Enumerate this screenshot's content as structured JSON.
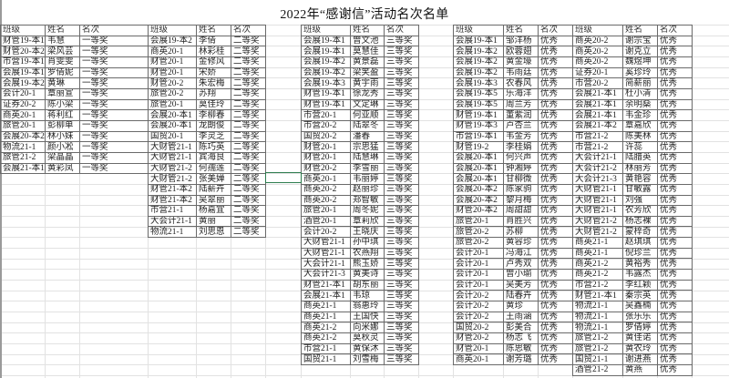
{
  "title": "2022年“感谢信”活动名次名单",
  "headers": [
    "班级",
    "姓名",
    "名次"
  ],
  "selection_color": "#2e7d4f",
  "tables": [
    {
      "award": "一等奖",
      "rows": [
        [
          "财管19-本1",
          "韦慧"
        ],
        [
          "财管20-本2",
          "梁风芸"
        ],
        [
          "市营19-本1",
          "肖雯雯"
        ],
        [
          "会展19-本1",
          "罗倩妮"
        ],
        [
          "会展19-本2",
          "黄琳"
        ],
        [
          "会计20-1",
          "覃丽宣"
        ],
        [
          "证券20-2",
          "陈小梁"
        ],
        [
          "商英20-1",
          "蒋利红"
        ],
        [
          "旅管20-1",
          "彭柳单"
        ],
        [
          "会展20-本2",
          "林小妹"
        ],
        [
          "物流21-1",
          "颜小凇"
        ],
        [
          "旅管21-2",
          "梁晶晶"
        ],
        [
          "会展21-本1",
          "黄彩凤"
        ]
      ]
    },
    {
      "award": "二等奖",
      "rows": [
        [
          "会展19-本2",
          "李倩"
        ],
        [
          "商英20-1",
          "林彩桂"
        ],
        [
          "财管20-1",
          "金修风"
        ],
        [
          "财管20-1",
          "宋娇"
        ],
        [
          "财管20-2",
          "朱宏梅"
        ],
        [
          "旅管20-2",
          "苏翔"
        ],
        [
          "旅管20-1",
          "莫佳玲"
        ],
        [
          "会展20-本1",
          "李柳春"
        ],
        [
          "会展20-本1",
          "龙朗俊"
        ],
        [
          "国贸20-1",
          "李灵芝"
        ],
        [
          "大财管21-1",
          "陈巧英"
        ],
        [
          "大财管21-1",
          "宾海良"
        ],
        [
          "大财管21-2",
          "何孺莲"
        ],
        [
          "大财管21-2",
          "张美婵"
        ],
        [
          "财管21-本2",
          "陆薪卉"
        ],
        [
          "财管21-本2",
          "吴翠丽"
        ],
        [
          "市营21-1",
          "杨嘉宜"
        ],
        [
          "大会计21-1",
          "黄丽"
        ],
        [
          "物流21-1",
          "刘思恩"
        ]
      ]
    },
    {
      "award": "三等奖",
      "rows": [
        [
          "会展19-本1",
          "曾文池"
        ],
        [
          "会展19-本1",
          "莫慧佳"
        ],
        [
          "会展19-本2",
          "黄景磊"
        ],
        [
          "会展19-本2",
          "梁笑盈"
        ],
        [
          "会展19-本3",
          "黄宇雨"
        ],
        [
          "财管19-本1",
          "徐龙秀"
        ],
        [
          "财管19-本1",
          "文定琳"
        ],
        [
          "市营20-1",
          "何亚顺"
        ],
        [
          "市营20-2",
          "陆翠冬"
        ],
        [
          "国贸20-2",
          "潘春"
        ],
        [
          "财管20-1",
          "宗思猛"
        ],
        [
          "财管20-1",
          "陆慧琳"
        ],
        [
          "财管20-2",
          "李雪丽"
        ],
        [
          "商英20-1",
          "韦丽婷"
        ],
        [
          "商英20-2",
          "赵丽珍"
        ],
        [
          "商英20-2",
          "郑智敏"
        ],
        [
          "旅管20-1",
          "周冬妮"
        ],
        [
          "酒管20-1",
          "覃莉欣"
        ],
        [
          "会计20-2",
          "王晓庆"
        ],
        [
          "大财管21-1",
          "孙中琪"
        ],
        [
          "大财管21-1",
          "农燕翔"
        ],
        [
          "大会计21-1",
          "熊玉娇"
        ],
        [
          "大会计21-3",
          "黄美诗"
        ],
        [
          "财管21-本1",
          "胡东丽"
        ],
        [
          "会展21-本1",
          "韦琼"
        ],
        [
          "商英21-1",
          "翁惠玲"
        ],
        [
          "商英21-1",
          "王国快"
        ],
        [
          "商英21-2",
          "向米娜"
        ],
        [
          "商英21-2",
          "莫秋灵"
        ],
        [
          "市营21-1",
          "黄保沐"
        ],
        [
          "国贸21-1",
          "刘雪梅"
        ]
      ]
    },
    {
      "award": "优秀",
      "rows": [
        [
          "会展19-本1",
          "邹洋杨"
        ],
        [
          "会展19-本2",
          "欧蓉翅"
        ],
        [
          "会展19-本2",
          "黄金壕"
        ],
        [
          "会展19-本2",
          "韦雨廷"
        ],
        [
          "会展19-本3",
          "农春风"
        ],
        [
          "会展19-本5",
          "乐海洋"
        ],
        [
          "会展19-本5",
          "周兰芳"
        ],
        [
          "财管19-本1",
          "董紫润"
        ],
        [
          "财管19-本3",
          "卢杏兰"
        ],
        [
          "市营19-本1",
          "韦金芳"
        ],
        [
          "财管19-2",
          "李桂娟"
        ],
        [
          "会展20-本1",
          "何兴声"
        ],
        [
          "会展20-本1",
          "钟湘婷"
        ],
        [
          "会展20-本1",
          "甘柳微"
        ],
        [
          "会展20-本2",
          "陈家驹"
        ],
        [
          "会展20-本2",
          "黎月梅"
        ],
        [
          "财管20-本2",
          "周甜甜"
        ],
        [
          "旅管20-1",
          "肖胜兴"
        ],
        [
          "旅管20-2",
          "苏柳"
        ],
        [
          "旅管20-2",
          "黄容珍"
        ],
        [
          "会计20-1",
          "冯海江"
        ],
        [
          "会计20-1",
          "卢秀双"
        ],
        [
          "会计20-1",
          "曾小瑜"
        ],
        [
          "会计20-1",
          "吴美芳"
        ],
        [
          "会计20-2",
          "陆春卉"
        ],
        [
          "会计20-2",
          "黄珍"
        ],
        [
          "会计20-2",
          "王雨涵"
        ],
        [
          "国贸20-2",
          "彭美合"
        ],
        [
          "财管20-2",
          "杨志飞"
        ],
        [
          "财管20-1",
          "陈思敏"
        ],
        [
          "商英20-1",
          "谢芳璐"
        ]
      ]
    },
    {
      "award": "优秀",
      "rows": [
        [
          "商英20-2",
          "谢宗宝"
        ],
        [
          "商英20-2",
          "谢克立"
        ],
        [
          "商英20-2",
          "魏煜坤"
        ],
        [
          "证券20-1",
          "奚珍玲"
        ],
        [
          "市营20-2",
          "简薪丽"
        ],
        [
          "会展21-本1",
          "杜小清"
        ],
        [
          "会展21-本1",
          "余明燊"
        ],
        [
          "会展21-本1",
          "韦金珍"
        ],
        [
          "会展21-本2",
          "覃嘉欣"
        ],
        [
          "市营21-2",
          "陈美林"
        ],
        [
          "市营21-2",
          "许蕊"
        ],
        [
          "大会计21-1",
          "陆腊英"
        ],
        [
          "大会计21-2",
          "林丽芳"
        ],
        [
          "大会计21-3",
          "黄艳容"
        ],
        [
          "大财管21-1",
          "甘敏露"
        ],
        [
          "大财管21-1",
          "刘强"
        ],
        [
          "大财管21-1",
          "农芳欣"
        ],
        [
          "大财管21-2",
          "杨志裸"
        ],
        [
          "大财管21-2",
          "蒙梓奇"
        ],
        [
          "商英21-1",
          "赵琪琪"
        ],
        [
          "商英21-1",
          "倪珍兰"
        ],
        [
          "商英21-2",
          "黄裕秀"
        ],
        [
          "商英21-2",
          "韦露杰"
        ],
        [
          "市营21-2",
          "李红颖"
        ],
        [
          "财管21-本1",
          "秦宗英"
        ],
        [
          "物流21-1",
          "吴鑫楠"
        ],
        [
          "物流21-1",
          "张乐乐"
        ],
        [
          "物流21-1",
          "罗倩婷"
        ],
        [
          "旅管21-2",
          "黄佳诺"
        ],
        [
          "旅管21-2",
          "黄农玲"
        ],
        [
          "国贸21-1",
          "谢进燕"
        ],
        [
          "酒管21-2",
          "黄燕"
        ]
      ]
    }
  ]
}
